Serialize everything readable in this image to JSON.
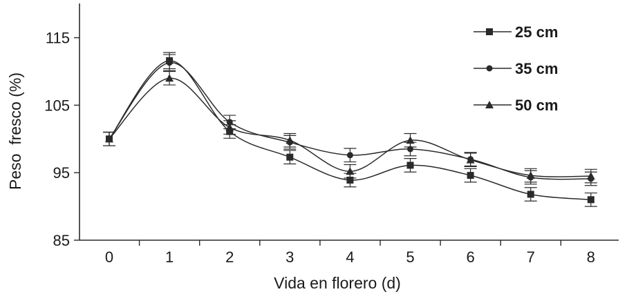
{
  "chart_data": {
    "type": "line",
    "xlabel": "Vida en florero (d)",
    "ylabel": "Peso  fresco (%)",
    "categories": [
      "0",
      "1",
      "2",
      "3",
      "4",
      "5",
      "6",
      "7",
      "8"
    ],
    "x": [
      0,
      1,
      2,
      3,
      4,
      5,
      6,
      7,
      8
    ],
    "ylim": [
      85,
      120
    ],
    "yticks": [
      85,
      95,
      105,
      115
    ],
    "grid": false,
    "legend_position": "top-right",
    "error_bars": true,
    "series": [
      {
        "name": "25 cm",
        "marker": "square",
        "values": [
          100.0,
          111.6,
          101.1,
          97.3,
          93.9,
          96.1,
          94.6,
          91.8,
          91.0
        ],
        "errors": [
          1.0,
          1.2,
          1.0,
          1.0,
          1.0,
          1.0,
          1.0,
          1.0,
          1.0
        ]
      },
      {
        "name": "35 cm",
        "marker": "circle",
        "values": [
          100.0,
          111.3,
          102.5,
          99.5,
          97.6,
          98.5,
          97.0,
          94.3,
          94.1
        ],
        "errors": [
          1.0,
          1.2,
          1.0,
          1.0,
          1.0,
          1.0,
          1.0,
          1.0,
          1.0
        ]
      },
      {
        "name": "50 cm",
        "marker": "triangle",
        "values": [
          100.0,
          109.0,
          101.7,
          99.8,
          95.2,
          99.8,
          96.9,
          94.6,
          94.5
        ],
        "errors": [
          1.0,
          1.0,
          1.0,
          1.0,
          1.0,
          1.0,
          1.0,
          1.0,
          1.0
        ]
      }
    ],
    "colors": {
      "line": "#2a2a2a",
      "axis": "#2a2a2a",
      "text": "#1a1a1a"
    }
  }
}
